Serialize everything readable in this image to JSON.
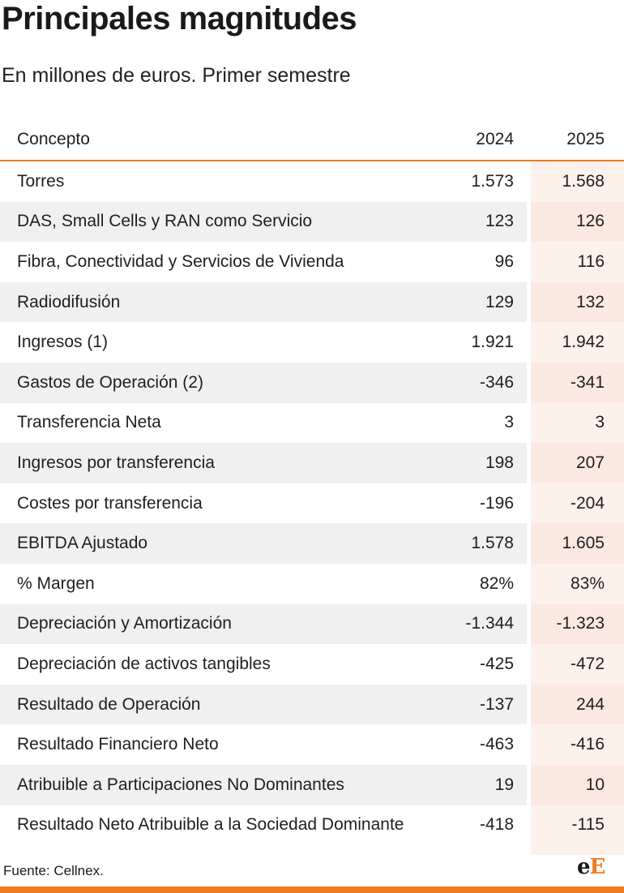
{
  "title": "Principales magnitudes",
  "subtitle": "En millones de euros. Primer semestre",
  "source": "Fuente: Cellnex.",
  "logo_text": "eE",
  "colors": {
    "accent": "#f07a1e",
    "row_shade": "#f0f0f0",
    "highlight_column": "#fdf1ec"
  },
  "chart_data": {
    "type": "table",
    "columns": [
      "Concepto",
      "2024",
      "2025"
    ],
    "rows": [
      {
        "concepto": "Torres",
        "y2024": "1.573",
        "y2025": "1.568"
      },
      {
        "concepto": "DAS, Small Cells y RAN como Servicio",
        "y2024": "123",
        "y2025": "126"
      },
      {
        "concepto": "Fibra, Conectividad y Servicios de Vivienda",
        "y2024": "96",
        "y2025": "116"
      },
      {
        "concepto": "Radiodifusión",
        "y2024": "129",
        "y2025": "132"
      },
      {
        "concepto": "Ingresos (1)",
        "y2024": "1.921",
        "y2025": "1.942"
      },
      {
        "concepto": "Gastos de Operación (2)",
        "y2024": "-346",
        "y2025": "-341"
      },
      {
        "concepto": "Transferencia Neta",
        "y2024": "3",
        "y2025": "3"
      },
      {
        "concepto": "Ingresos por transferencia",
        "y2024": "198",
        "y2025": "207"
      },
      {
        "concepto": "Costes por transferencia",
        "y2024": "-196",
        "y2025": "-204"
      },
      {
        "concepto": "EBITDA Ajustado",
        "y2024": "1.578",
        "y2025": "1.605"
      },
      {
        "concepto": "% Margen",
        "y2024": "82%",
        "y2025": "83%"
      },
      {
        "concepto": "Depreciación y Amortización",
        "y2024": "-1.344",
        "y2025": "-1.323"
      },
      {
        "concepto": "Depreciación de activos tangibles",
        "y2024": "-425",
        "y2025": "-472"
      },
      {
        "concepto": "Resultado de Operación",
        "y2024": "-137",
        "y2025": "244"
      },
      {
        "concepto": "Resultado Financiero Neto",
        "y2024": "-463",
        "y2025": "-416"
      },
      {
        "concepto": "Atribuible a Participaciones No Dominantes",
        "y2024": "19",
        "y2025": "10"
      },
      {
        "concepto": "Resultado Neto Atribuible a la Sociedad Dominante",
        "y2024": "-418",
        "y2025": "-115"
      }
    ]
  }
}
